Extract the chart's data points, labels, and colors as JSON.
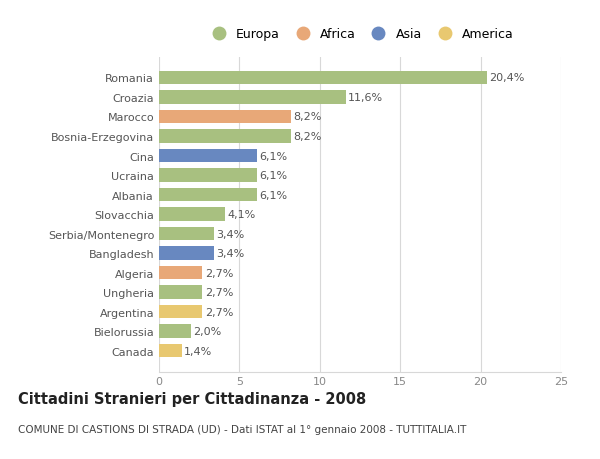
{
  "categories": [
    "Romania",
    "Croazia",
    "Marocco",
    "Bosnia-Erzegovina",
    "Cina",
    "Ucraina",
    "Albania",
    "Slovacchia",
    "Serbia/Montenegro",
    "Bangladesh",
    "Algeria",
    "Ungheria",
    "Argentina",
    "Bielorussia",
    "Canada"
  ],
  "values": [
    20.4,
    11.6,
    8.2,
    8.2,
    6.1,
    6.1,
    6.1,
    4.1,
    3.4,
    3.4,
    2.7,
    2.7,
    2.7,
    2.0,
    1.4
  ],
  "labels": [
    "20,4%",
    "11,6%",
    "8,2%",
    "8,2%",
    "6,1%",
    "6,1%",
    "6,1%",
    "4,1%",
    "3,4%",
    "3,4%",
    "2,7%",
    "2,7%",
    "2,7%",
    "2,0%",
    "1,4%"
  ],
  "continents": [
    "Europa",
    "Europa",
    "Africa",
    "Europa",
    "Asia",
    "Europa",
    "Europa",
    "Europa",
    "Europa",
    "Asia",
    "Africa",
    "Europa",
    "America",
    "Europa",
    "America"
  ],
  "continent_colors": {
    "Europa": "#a8c080",
    "Africa": "#e8a878",
    "Asia": "#6888c0",
    "America": "#e8c870"
  },
  "legend_order": [
    "Europa",
    "Africa",
    "Asia",
    "America"
  ],
  "xlim": [
    0,
    25
  ],
  "xticks": [
    0,
    5,
    10,
    15,
    20,
    25
  ],
  "title": "Cittadini Stranieri per Cittadinanza - 2008",
  "subtitle": "COMUNE DI CASTIONS DI STRADA (UD) - Dati ISTAT al 1° gennaio 2008 - TUTTITALIA.IT",
  "bg_color": "#ffffff",
  "grid_color": "#d8d8d8",
  "bar_height": 0.68,
  "label_fontsize": 8.0,
  "tick_fontsize": 8.0,
  "title_fontsize": 10.5,
  "subtitle_fontsize": 7.5,
  "legend_fontsize": 9.0
}
